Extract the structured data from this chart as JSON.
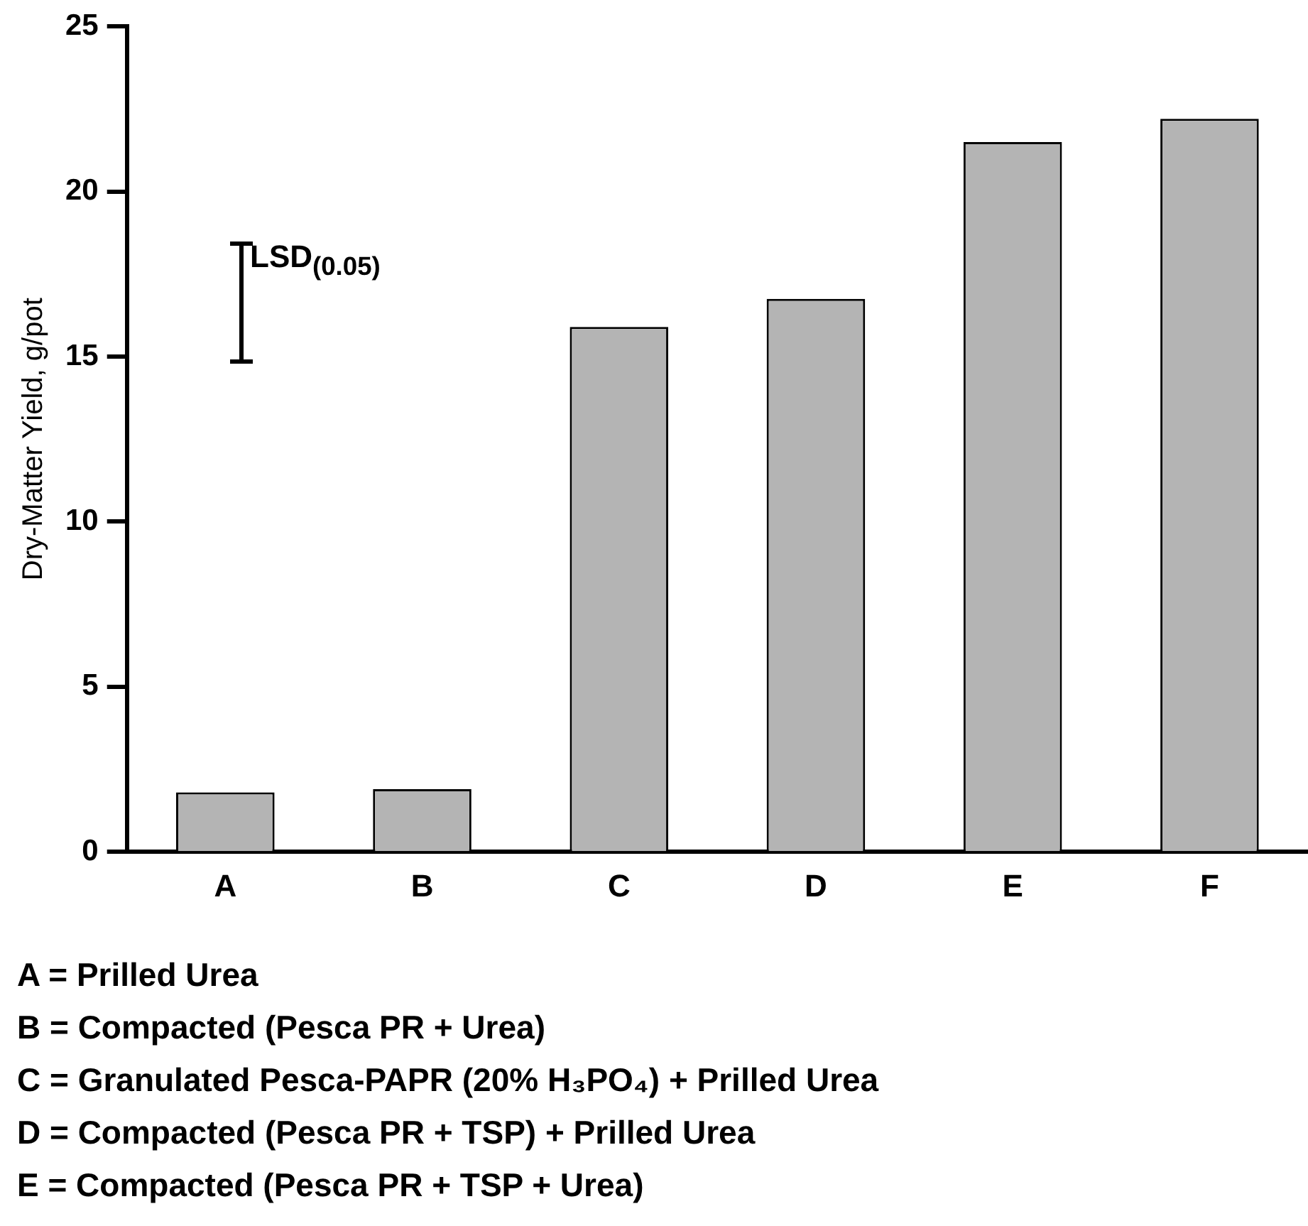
{
  "chart_data": {
    "type": "bar",
    "ylabel": "Dry-Matter Yield, g/pot",
    "categories": [
      "A",
      "B",
      "C",
      "D",
      "E",
      "F"
    ],
    "values": [
      1.8,
      1.9,
      15.9,
      16.75,
      21.5,
      22.2
    ],
    "color": "#b4b4b4",
    "ylim": [
      0,
      25
    ],
    "yticks": [
      0,
      5,
      10,
      15,
      20,
      25
    ],
    "grid": false,
    "annotations": [
      "LSD$_{(0.05)}$",
      "A = Prilled Urea",
      "B = Compacted (Pesca PR + Urea)",
      "C = Granulated Pesca-PAPR (20% H₃PO₄) + Prilled Urea",
      "D = Compacted (Pesca PR + TSP) + Prilled Urea",
      "E = Compacted (Pesca PR + TSP + Urea)"
    ]
  }
}
